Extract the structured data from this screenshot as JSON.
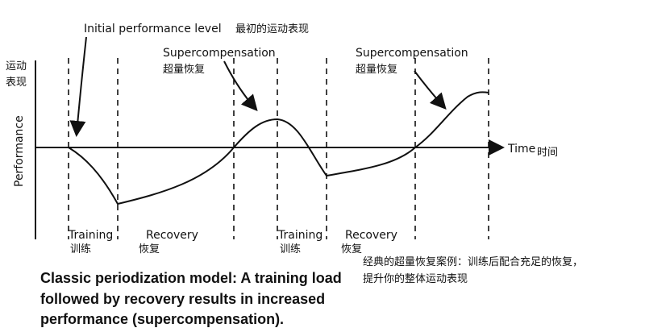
{
  "annotations": {
    "initial": {
      "en": "Initial performance level",
      "zh": "最初的运动表现"
    },
    "supercompensation": [
      {
        "en": "Supercompensation",
        "zh": "超量恢复"
      },
      {
        "en": "Supercompensation",
        "zh": "超量恢复"
      }
    ]
  },
  "y_axis": {
    "zh_lines": [
      "运动",
      "表现"
    ],
    "label": "Performance"
  },
  "x_axis": {
    "label": "Time",
    "zh": "时间"
  },
  "phases": [
    {
      "en": "Training",
      "zh": "训练"
    },
    {
      "en": "Recovery",
      "zh": "恢复"
    },
    {
      "en": "Training",
      "zh": "训练"
    },
    {
      "en": "Recovery",
      "zh": "恢复"
    }
  ],
  "note": [
    "经典的超量恢复案例：训练后配合充足的恢复，",
    "提升你的整体运动表现"
  ],
  "caption": [
    "Classic periodization model: A training load",
    "followed by recovery results in increased",
    "performance (supercompensation)."
  ]
}
